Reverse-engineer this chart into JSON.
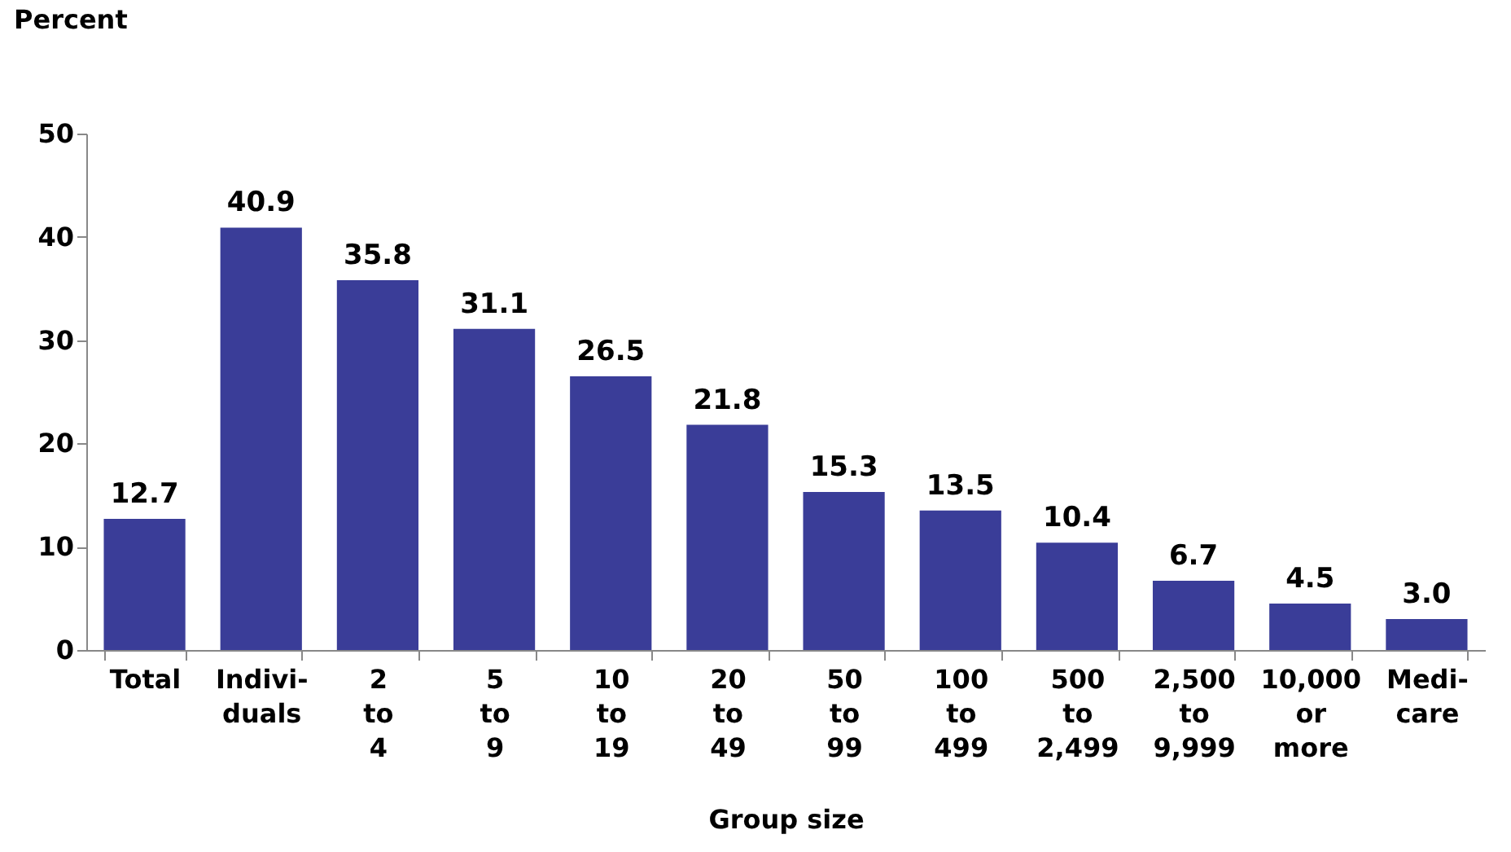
{
  "chart_data": {
    "type": "bar",
    "ylabel": "Percent",
    "xlabel": "Group size",
    "categories": [
      "Total",
      "Indivi-\nduals",
      "2\nto\n4",
      "5\nto\n9",
      "10\nto\n19",
      "20\nto\n49",
      "50\nto\n99",
      "100\nto\n499",
      "500\nto\n2,499",
      "2,500\nto\n9,999",
      "10,000\nor\nmore",
      "Medi-\ncare"
    ],
    "values": [
      12.7,
      40.9,
      35.8,
      31.1,
      26.5,
      21.8,
      15.3,
      13.5,
      10.4,
      6.7,
      4.5,
      3.0
    ],
    "value_labels": [
      "12.7",
      "40.9",
      "35.8",
      "31.1",
      "26.5",
      "21.8",
      "15.3",
      "13.5",
      "10.4",
      "6.7",
      "4.5",
      "3.0"
    ],
    "color": "#3a3d98",
    "ylim": [
      0,
      50
    ],
    "yticks": [
      0,
      10,
      20,
      30,
      40,
      50
    ],
    "grid": false
  }
}
